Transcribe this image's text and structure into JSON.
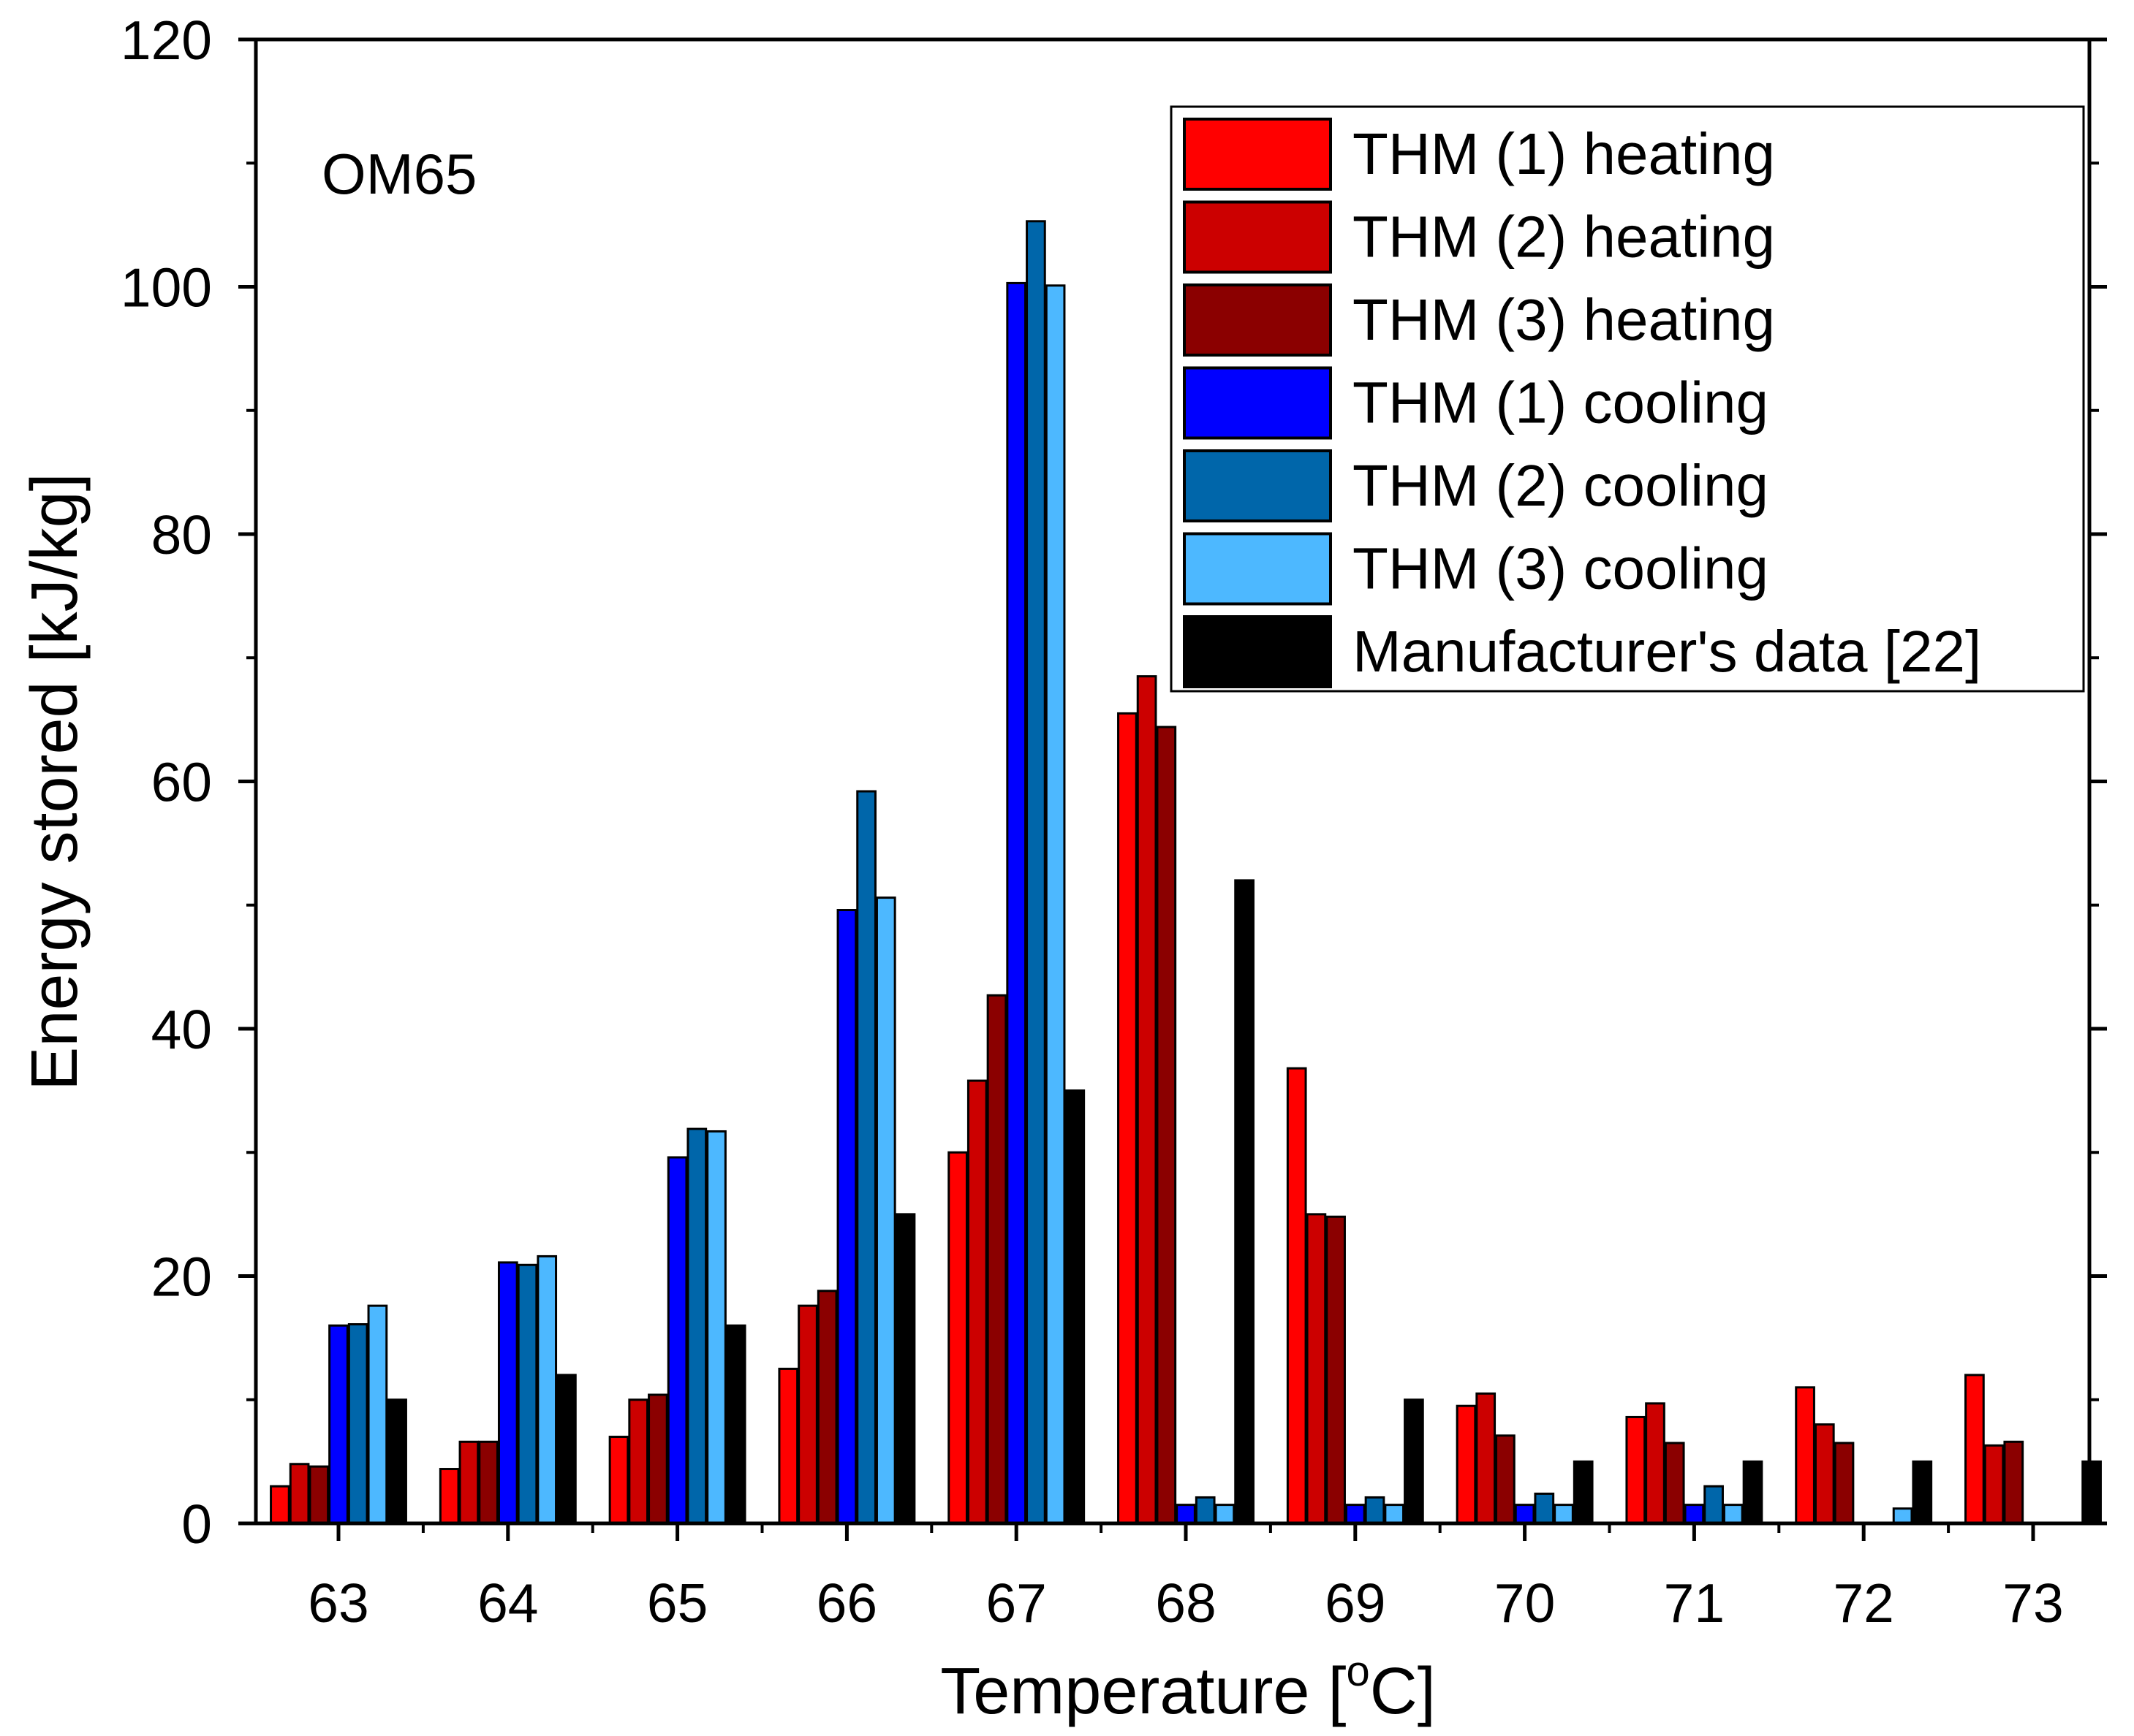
{
  "chart_data": {
    "type": "bar",
    "annotation": "OM65",
    "xlabel_main": "Temperature [",
    "xlabel_sup": "o",
    "xlabel_end": "C]",
    "ylabel": "Energy stored [kJ/kg]",
    "categories": [
      "63",
      "64",
      "65",
      "66",
      "67",
      "68",
      "69",
      "70",
      "71",
      "72",
      "73"
    ],
    "ylim": [
      0,
      120
    ],
    "yticks": [
      0,
      20,
      40,
      60,
      80,
      100,
      120
    ],
    "ytick_labels": [
      "0",
      "20",
      "40",
      "60",
      "80",
      "100",
      "120"
    ],
    "legend_position": "top-right",
    "series": [
      {
        "name": "THM (1) heating",
        "color": "#ff0000",
        "values": [
          3,
          4.4,
          7,
          12.5,
          30,
          65.5,
          36.8,
          9.5,
          8.6,
          11,
          12
        ]
      },
      {
        "name": "THM (2) heating",
        "color": "#cc0000",
        "values": [
          4.8,
          6.6,
          10,
          17.6,
          35.8,
          68.5,
          25,
          10.5,
          9.7,
          8,
          6.3
        ]
      },
      {
        "name": "THM (3) heating",
        "color": "#8b0000",
        "values": [
          4.6,
          6.6,
          10.4,
          18.8,
          42.7,
          64.4,
          24.8,
          7.1,
          6.5,
          6.5,
          6.6
        ]
      },
      {
        "name": "THM (1) cooling",
        "color": "#0000ff",
        "values": [
          16,
          21.1,
          29.6,
          49.6,
          100.3,
          1.5,
          1.5,
          1.5,
          1.5,
          0,
          0
        ]
      },
      {
        "name": "THM (2) cooling",
        "color": "#0066aa",
        "values": [
          16.1,
          20.9,
          31.9,
          59.2,
          105.3,
          2.1,
          2.1,
          2.4,
          3,
          0,
          0
        ]
      },
      {
        "name": "THM (3) cooling",
        "color": "#4db8ff",
        "values": [
          17.6,
          21.6,
          31.7,
          50.6,
          100.1,
          1.5,
          1.5,
          1.5,
          1.5,
          1.2,
          0
        ]
      },
      {
        "name": "Manufacturer's data [22]",
        "color": "#000000",
        "values": [
          10,
          12,
          16,
          25,
          35,
          52,
          10,
          5,
          5,
          5,
          5
        ]
      }
    ]
  }
}
